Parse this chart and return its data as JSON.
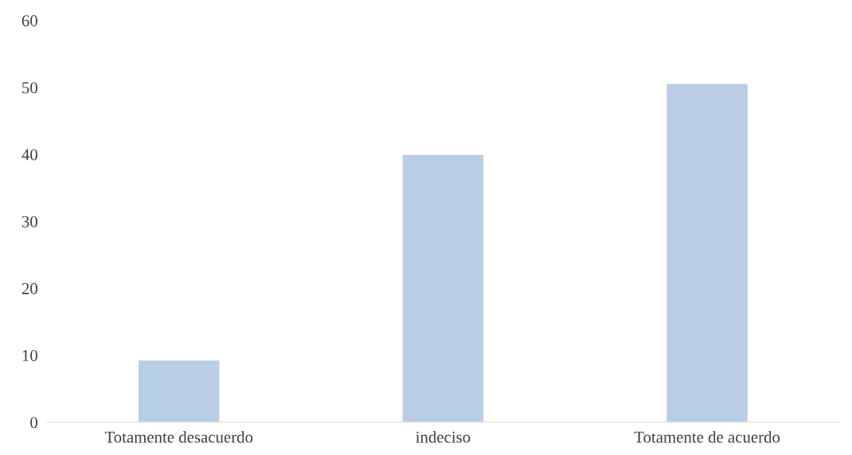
{
  "chart_data": {
    "type": "bar",
    "categories": [
      "Totamente desacuerdo",
      "indeciso",
      "Totamente de acuerdo"
    ],
    "values": [
      9.3,
      40,
      50.6
    ],
    "color": "#b9cde5",
    "ylim": [
      0,
      60
    ],
    "yticks": [
      0,
      10,
      20,
      30,
      40,
      50,
      60
    ],
    "grid": false,
    "legend": false
  }
}
